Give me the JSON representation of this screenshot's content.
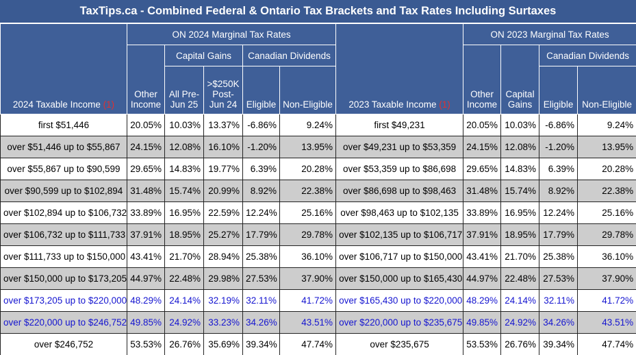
{
  "title": "TaxTips.ca - Combined Federal & Ontario Tax Brackets and Tax Rates Including Surtaxes",
  "headers": {
    "inc2024": "2024 Taxable Income",
    "inc2023": "2023 Taxable Income",
    "note": "(1)",
    "on2024": "ON 2024 Marginal Tax Rates",
    "on2023": "ON 2023 Marginal Tax Rates",
    "capital_gains": "Capital Gains",
    "canadian_dividends": "Canadian Dividends",
    "other": "Other",
    "income": "Income",
    "allpre_1": "All Pre-",
    "allpre_2": "Jun 25",
    "over250_1": ">$250K",
    "over250_2": "Post-",
    "over250_3": "Jun 24",
    "eligible": "Eligible",
    "non_eligible": "Non-Eligible",
    "capital": "Capital",
    "gains": "Gains"
  },
  "rows": [
    {
      "inc24": "first $51,446",
      "o24": "20.05%",
      "cg24a": "10.03%",
      "cg24b": "13.37%",
      "el24": "-6.86%",
      "ne24": "9.24%",
      "inc23": "first $49,231",
      "o23": "20.05%",
      "cg23": "10.03%",
      "el23": "-6.86%",
      "ne23": "9.24%"
    },
    {
      "inc24": "over $51,446 up to $55,867",
      "o24": "24.15%",
      "cg24a": "12.08%",
      "cg24b": "16.10%",
      "el24": "-1.20%",
      "ne24": "13.95%",
      "inc23": "over $49,231 up to $53,359",
      "o23": "24.15%",
      "cg23": "12.08%",
      "el23": "-1.20%",
      "ne23": "13.95%"
    },
    {
      "inc24": "over $55,867 up to $90,599",
      "o24": "29.65%",
      "cg24a": "14.83%",
      "cg24b": "19.77%",
      "el24": "6.39%",
      "ne24": "20.28%",
      "inc23": "over $53,359 up to $86,698",
      "o23": "29.65%",
      "cg23": "14.83%",
      "el23": "6.39%",
      "ne23": "20.28%"
    },
    {
      "inc24": "over $90,599 up to $102,894",
      "o24": "31.48%",
      "cg24a": "15.74%",
      "cg24b": "20.99%",
      "el24": "8.92%",
      "ne24": "22.38%",
      "inc23": "over $86,698 up to $98,463",
      "o23": "31.48%",
      "cg23": "15.74%",
      "el23": "8.92%",
      "ne23": "22.38%"
    },
    {
      "inc24": "over $102,894 up to $106,732",
      "o24": "33.89%",
      "cg24a": "16.95%",
      "cg24b": "22.59%",
      "el24": "12.24%",
      "ne24": "25.16%",
      "inc23": "over $98,463 up to $102,135",
      "o23": "33.89%",
      "cg23": "16.95%",
      "el23": "12.24%",
      "ne23": "25.16%"
    },
    {
      "inc24": "over $106,732 up to $111,733",
      "o24": "37.91%",
      "cg24a": "18.95%",
      "cg24b": "25.27%",
      "el24": "17.79%",
      "ne24": "29.78%",
      "inc23": "over $102,135 up to $106,717",
      "o23": "37.91%",
      "cg23": "18.95%",
      "el23": "17.79%",
      "ne23": "29.78%"
    },
    {
      "inc24": "over $111,733 up to $150,000",
      "o24": "43.41%",
      "cg24a": "21.70%",
      "cg24b": "28.94%",
      "el24": "25.38%",
      "ne24": "36.10%",
      "inc23": "over $106,717 up to $150,000",
      "o23": "43.41%",
      "cg23": "21.70%",
      "el23": "25.38%",
      "ne23": "36.10%"
    },
    {
      "inc24": "over $150,000 up to $173,205",
      "o24": "44.97%",
      "cg24a": "22.48%",
      "cg24b": "29.98%",
      "el24": "27.53%",
      "ne24": "37.90%",
      "inc23": "over $150,000 up to $165,430",
      "o23": "44.97%",
      "cg23": "22.48%",
      "el23": "27.53%",
      "ne23": "37.90%"
    },
    {
      "inc24": "over $173,205 up to $220,000",
      "o24": "48.29%",
      "cg24a": "24.14%",
      "cg24b": "32.19%",
      "el24": "32.11%",
      "ne24": "41.72%",
      "inc23": "over $165,430 up to $220,000",
      "o23": "48.29%",
      "cg23": "24.14%",
      "el23": "32.11%",
      "ne23": "41.72%"
    },
    {
      "inc24": "over $220,000 up to $246,752",
      "o24": "49.85%",
      "cg24a": "24.92%",
      "cg24b": "33.23%",
      "el24": "34.26%",
      "ne24": "43.51%",
      "inc23": "over $220,000 up to $235,675",
      "o23": "49.85%",
      "cg23": "24.92%",
      "el23": "34.26%",
      "ne23": "43.51%"
    },
    {
      "inc24": "over $246,752",
      "o24": "53.53%",
      "cg24a": "26.76%",
      "cg24b": "35.69%",
      "el24": "39.34%",
      "ne24": "47.74%",
      "inc23": "over $235,675",
      "o23": "53.53%",
      "cg23": "26.76%",
      "el23": "39.34%",
      "ne23": "47.74%"
    }
  ],
  "colors": {
    "header_bg": "#3f5f98",
    "shade": "#cdcdcd",
    "blue_text": "#1515d0",
    "note": "#e03030"
  }
}
